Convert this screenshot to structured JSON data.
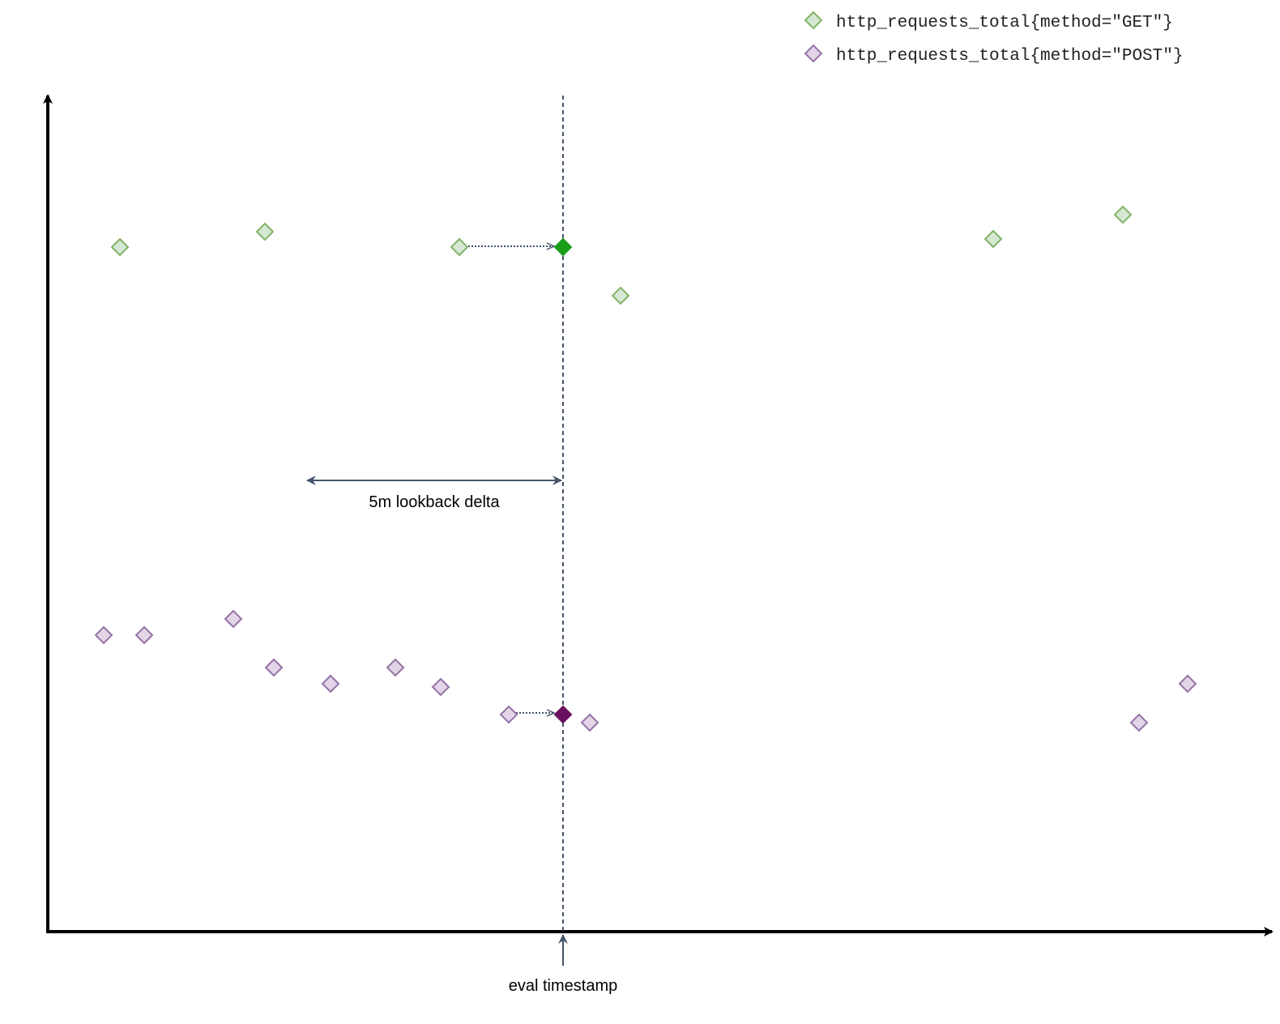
{
  "legend": {
    "items": [
      {
        "label": "http_requests_total{method=\"GET\"}",
        "series": "get"
      },
      {
        "label": "http_requests_total{method=\"POST\"}",
        "series": "post"
      }
    ]
  },
  "annotations": {
    "lookback_label": "5m lookback delta",
    "eval_label": "eval timestamp"
  },
  "colors": {
    "get_fill": "#d5e8d4",
    "get_stroke": "#82b366",
    "get_selected": "#1a9e1a",
    "post_fill": "#e1d5e7",
    "post_stroke": "#9673a6",
    "post_selected": "#6a0f5e",
    "guide": "#44546a",
    "axis": "#000000"
  }
}
